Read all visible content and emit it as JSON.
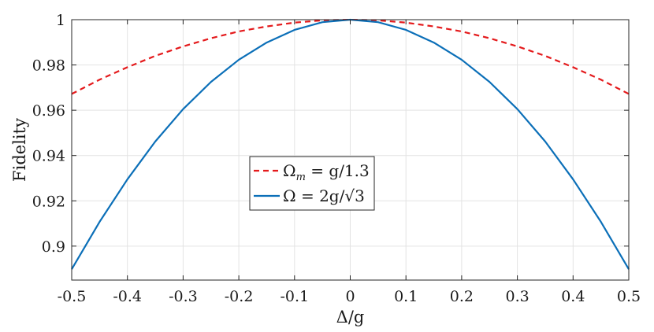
{
  "chart_data": {
    "type": "line",
    "xlabel": "Δ/g",
    "ylabel": "Fidelity",
    "xlim": [
      -0.5,
      0.5
    ],
    "ylim": [
      0.885,
      1.0
    ],
    "grid": true,
    "legend_position": "center",
    "xticks": [
      "-0.5",
      "-0.4",
      "-0.3",
      "-0.2",
      "-0.1",
      "0",
      "0.1",
      "0.2",
      "0.3",
      "0.4",
      "0.5"
    ],
    "yticks": [
      "0.9",
      "0.92",
      "0.94",
      "0.96",
      "0.98",
      "1"
    ],
    "x": [
      -0.5,
      -0.45,
      -0.4,
      -0.35,
      -0.3,
      -0.25,
      -0.2,
      -0.15,
      -0.1,
      -0.05,
      0,
      0.05,
      0.1,
      0.15,
      0.2,
      0.25,
      0.3,
      0.35,
      0.4,
      0.45,
      0.5
    ],
    "series": [
      {
        "name": "Ωm = g/1.3",
        "legend_main": "Ω",
        "legend_sub": "m",
        "legend_rest": " = g/1.3",
        "color": "#e41a1c",
        "style": "dashed",
        "values": [
          0.9672,
          0.9735,
          0.979,
          0.984,
          0.9882,
          0.9918,
          0.9948,
          0.997,
          0.9987,
          0.9997,
          1.0,
          0.9997,
          0.9987,
          0.997,
          0.9948,
          0.9918,
          0.9882,
          0.984,
          0.979,
          0.9735,
          0.9672
        ]
      },
      {
        "name": "Ω = 2g/√3",
        "legend_main": "Ω",
        "legend_sub": "",
        "legend_rest": " = 2g/√3",
        "color": "#0b6fb8",
        "style": "solid",
        "values": [
          0.8898,
          0.9107,
          0.9295,
          0.9462,
          0.9605,
          0.9725,
          0.9823,
          0.9899,
          0.9955,
          0.9989,
          1.0,
          0.9989,
          0.9955,
          0.9899,
          0.9823,
          0.9725,
          0.9605,
          0.9462,
          0.9295,
          0.9107,
          0.8898
        ]
      }
    ]
  }
}
